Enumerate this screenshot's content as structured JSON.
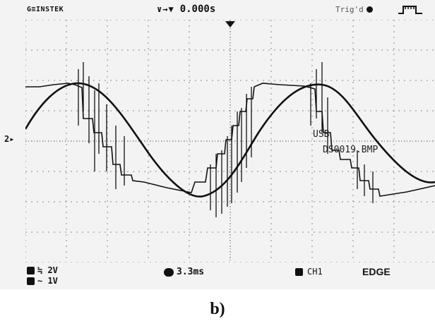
{
  "scope": {
    "brand": "G≡INSTEK",
    "trigger_glyphs": "∨→▼",
    "trigger_time": "0.000s",
    "trigger_status": "Trig'd",
    "channel_marker": "2▸",
    "overlay": {
      "line1": "USB",
      "line2": "DS0019.BMP"
    },
    "ch1_scale": "≒ 2V",
    "ch2_scale": "∼ 1V",
    "timebase": "3.3ms",
    "trigger_source": "CH1",
    "trigger_type": "EDGE"
  },
  "caption": "b)",
  "colors": {
    "trace": "#111111",
    "grid": "#8a8a8a",
    "screen_bg": "#f3f3f3"
  }
}
